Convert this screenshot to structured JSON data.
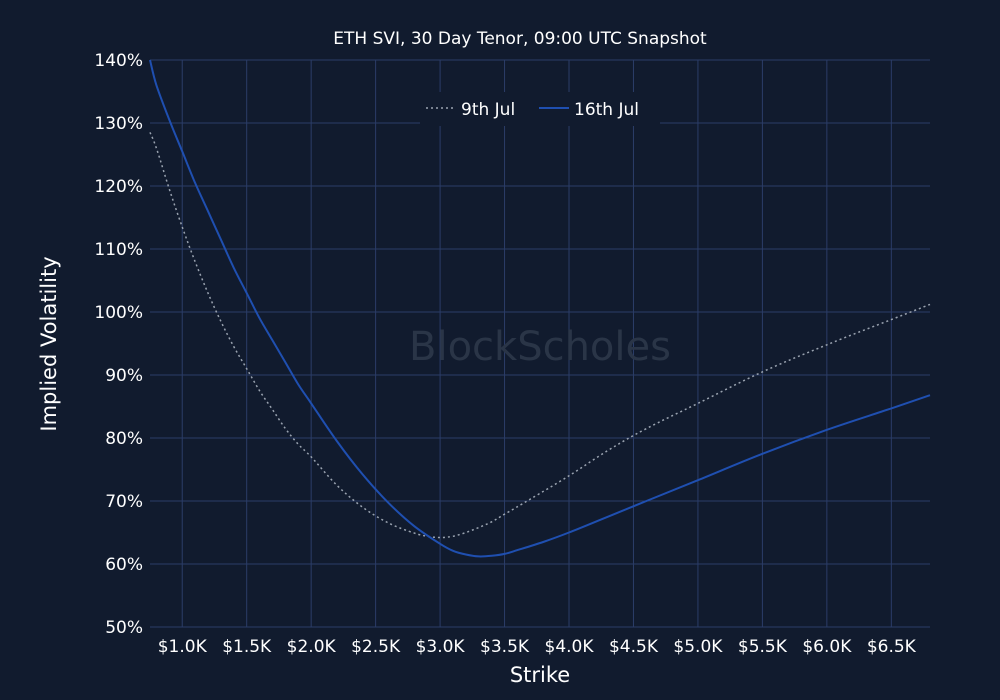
{
  "chart_data": {
    "type": "line",
    "title": "ETH SVI, 30 Day Tenor, 09:00 UTC Snapshot",
    "xlabel": "Strike",
    "ylabel": "Implied Volatility",
    "watermark": "BlockScholes",
    "xlim": [
      750,
      6800
    ],
    "ylim": [
      50,
      140
    ],
    "x_ticks": [
      1000,
      1500,
      2000,
      2500,
      3000,
      3500,
      4000,
      4500,
      5000,
      5500,
      6000,
      6500
    ],
    "x_tick_labels": [
      "$1.0K",
      "$1.5K",
      "$2.0K",
      "$2.5K",
      "$3.0K",
      "$3.5K",
      "$4.0K",
      "$4.5K",
      "$5.0K",
      "$5.5K",
      "$6.0K",
      "$6.5K"
    ],
    "y_ticks": [
      50,
      60,
      70,
      80,
      90,
      100,
      110,
      120,
      130,
      140
    ],
    "y_tick_labels": [
      "50%",
      "60%",
      "70%",
      "80%",
      "90%",
      "100%",
      "110%",
      "120%",
      "130%",
      "140%"
    ],
    "grid": true,
    "legend_position": "top-center",
    "series": [
      {
        "name": "9th Jul",
        "color": "#9aa3b0",
        "style": "dotted",
        "x": [
          750,
          800,
          900,
          1000,
          1100,
          1200,
          1300,
          1400,
          1500,
          1600,
          1700,
          1800,
          1900,
          2000,
          2200,
          2400,
          2600,
          2800,
          2900,
          3000,
          3100,
          3200,
          3300,
          3400,
          3500,
          3700,
          4000,
          4300,
          4600,
          5000,
          5500,
          6000,
          6500,
          6800
        ],
        "y": [
          128.5,
          126,
          119.5,
          113.5,
          108,
          103,
          98.5,
          94.5,
          91,
          87.5,
          84.5,
          81.5,
          79,
          77,
          72.5,
          69,
          66.5,
          64.9,
          64.4,
          64.2,
          64.4,
          65,
          65.8,
          66.7,
          67.9,
          70.3,
          74,
          78,
          81.5,
          85.5,
          90.5,
          94.8,
          98.8,
          101.2
        ]
      },
      {
        "name": "16th Jul",
        "color": "#1f4fb0",
        "style": "solid",
        "x": [
          750,
          800,
          900,
          1000,
          1100,
          1200,
          1300,
          1400,
          1500,
          1600,
          1700,
          1800,
          1900,
          2000,
          2200,
          2400,
          2600,
          2800,
          3000,
          3100,
          3200,
          3300,
          3400,
          3500,
          3600,
          3800,
          4000,
          4300,
          4600,
          5000,
          5500,
          6000,
          6500,
          6800
        ],
        "y": [
          140,
          136,
          130.5,
          125.5,
          120.5,
          116,
          111.5,
          107,
          103,
          99,
          95.5,
          92,
          88.5,
          85.5,
          79.5,
          74.2,
          69.7,
          66,
          63.2,
          62.1,
          61.5,
          61.2,
          61.3,
          61.6,
          62.2,
          63.5,
          65,
          67.5,
          70,
          73.3,
          77.5,
          81.3,
          84.7,
          86.8
        ]
      }
    ]
  }
}
